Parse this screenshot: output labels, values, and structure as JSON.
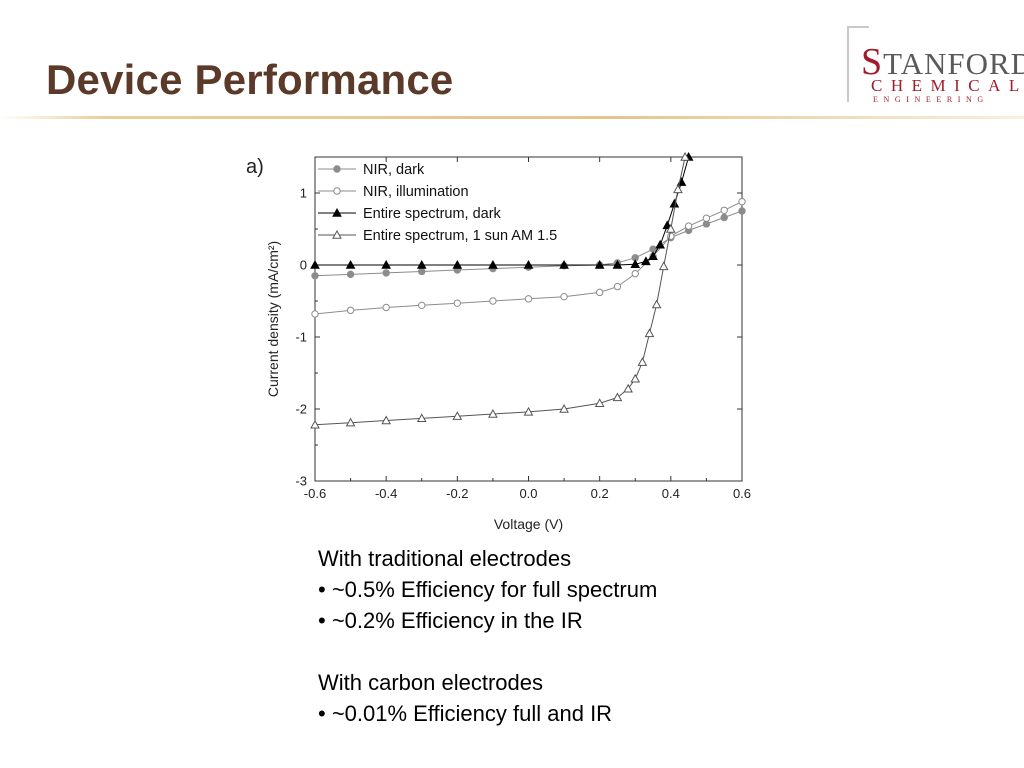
{
  "slide": {
    "title": "Device Performance"
  },
  "logo": {
    "line1_initial": "S",
    "line1_rest": "TANFORD",
    "line2": "CHEMICAL",
    "line3": "ENGINEERING",
    "brand_color": "#a11c2b"
  },
  "colors": {
    "title": "#5b3a29",
    "rule": "#e4c68c"
  },
  "chart_data": {
    "type": "scatter",
    "panel_label": "a)",
    "xlabel": "Voltage (V)",
    "ylabel": "Current density (mA/cm²)",
    "xlim": [
      -0.6,
      0.6
    ],
    "ylim": [
      -3,
      1.5
    ],
    "xticks": [
      "-0.6",
      "-0.4",
      "-0.2",
      "0.0",
      "0.2",
      "0.4",
      "0.6"
    ],
    "yticks": [
      "-3",
      "-2",
      "-1",
      "0",
      "1"
    ],
    "legend_position": "top-left",
    "series": [
      {
        "name": "NIR, dark",
        "marker": "filled-circle",
        "color": "#8c8c8c",
        "x": [
          -0.6,
          -0.5,
          -0.4,
          -0.3,
          -0.2,
          -0.1,
          0.0,
          0.1,
          0.2,
          0.25,
          0.3,
          0.35,
          0.4,
          0.45,
          0.5,
          0.55,
          0.6
        ],
        "y": [
          -0.15,
          -0.13,
          -0.11,
          -0.09,
          -0.07,
          -0.05,
          -0.03,
          -0.01,
          0.0,
          0.03,
          0.1,
          0.22,
          0.38,
          0.48,
          0.57,
          0.66,
          0.75
        ]
      },
      {
        "name": "NIR, illumination",
        "marker": "open-circle",
        "color": "#8c8c8c",
        "x": [
          -0.6,
          -0.5,
          -0.4,
          -0.3,
          -0.2,
          -0.1,
          0.0,
          0.1,
          0.2,
          0.25,
          0.3,
          0.35,
          0.4,
          0.45,
          0.5,
          0.55,
          0.6
        ],
        "y": [
          -0.68,
          -0.63,
          -0.59,
          -0.56,
          -0.53,
          -0.5,
          -0.47,
          -0.44,
          -0.38,
          -0.3,
          -0.12,
          0.12,
          0.4,
          0.54,
          0.65,
          0.76,
          0.88
        ]
      },
      {
        "name": "Entire spectrum, dark",
        "marker": "filled-triangle",
        "color": "#000000",
        "x": [
          -0.6,
          -0.5,
          -0.4,
          -0.3,
          -0.2,
          -0.1,
          0.0,
          0.1,
          0.2,
          0.25,
          0.3,
          0.33,
          0.35,
          0.37,
          0.39,
          0.41,
          0.43,
          0.45
        ],
        "y": [
          0.0,
          0.0,
          0.0,
          0.0,
          0.0,
          0.0,
          0.0,
          0.0,
          0.0,
          0.0,
          0.01,
          0.05,
          0.12,
          0.28,
          0.55,
          0.85,
          1.15,
          1.5
        ]
      },
      {
        "name": "Entire spectrum, 1 sun AM 1.5",
        "marker": "open-triangle",
        "color": "#555555",
        "x": [
          -0.6,
          -0.5,
          -0.4,
          -0.3,
          -0.2,
          -0.1,
          0.0,
          0.1,
          0.2,
          0.25,
          0.28,
          0.3,
          0.32,
          0.34,
          0.36,
          0.38,
          0.4,
          0.42,
          0.44
        ],
        "y": [
          -2.22,
          -2.19,
          -2.16,
          -2.13,
          -2.1,
          -2.07,
          -2.04,
          -2.0,
          -1.92,
          -1.84,
          -1.72,
          -1.58,
          -1.35,
          -0.95,
          -0.55,
          -0.02,
          0.5,
          1.05,
          1.5
        ]
      }
    ]
  },
  "notes": {
    "lines": [
      "With traditional electrodes",
      "• ~0.5% Efficiency for full spectrum",
      "• ~0.2% Efficiency in the IR",
      "",
      "With carbon electrodes",
      "• ~0.01% Efficiency full and IR"
    ]
  }
}
